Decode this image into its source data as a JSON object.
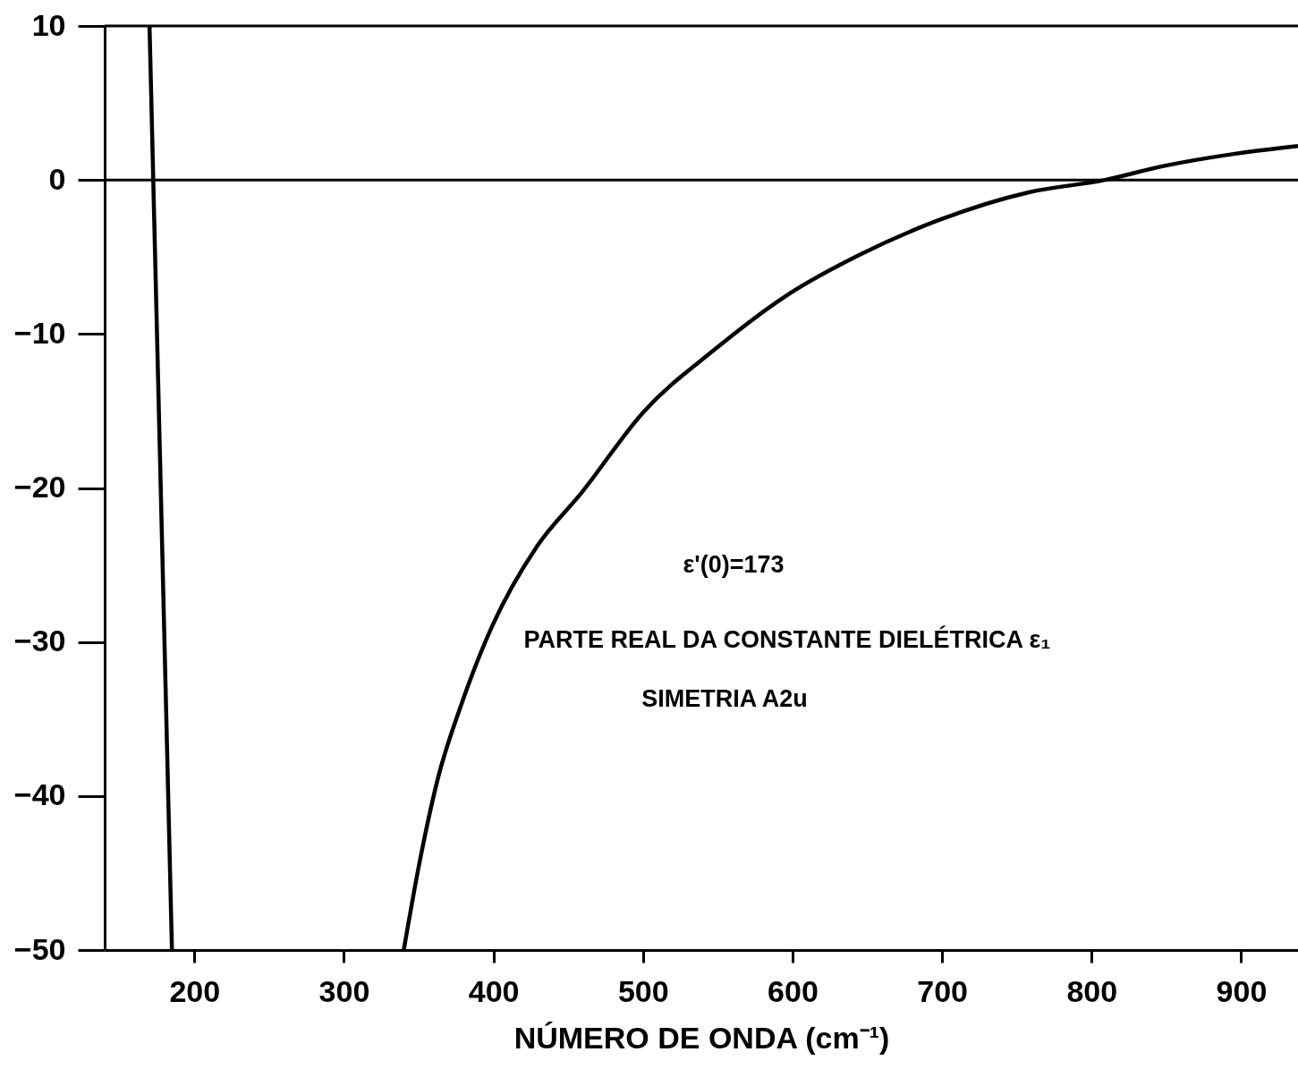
{
  "chart_data": {
    "type": "line",
    "xlabel": "NÚMERO DE ONDA (cm⁻¹)",
    "xlim": [
      140,
      938
    ],
    "xticks": [
      200,
      300,
      400,
      500,
      600,
      700,
      800,
      900
    ],
    "ylim": [
      -50,
      10
    ],
    "yticks": [
      -50,
      -40,
      -30,
      -20,
      -10,
      0,
      10
    ],
    "series": [
      {
        "color": "#000000",
        "x": [
          170,
          185
        ],
        "values": [
          10,
          -50
        ]
      },
      {
        "color": "#000000",
        "x": [
          340,
          351,
          363,
          378,
          399,
          429,
          459,
          500,
          548,
          596,
          644,
          698,
          758,
          809,
          848,
          896,
          938
        ],
        "values": [
          -50,
          -44.1,
          -38.8,
          -34.2,
          -29,
          -23.8,
          -20.3,
          -15.1,
          -11,
          -7.5,
          -4.9,
          -2.6,
          -0.8,
          0,
          0.9,
          1.7,
          2.2
        ]
      }
    ],
    "ref_lines": [
      {
        "axis": "y",
        "value": 0,
        "color": "#000000"
      }
    ],
    "annotations": [
      "ε'(0)=173",
      "PARTE REAL DA CONSTANTE  DIELÉTRICA ε₁",
      "SIMETRIA A2u"
    ],
    "grid": false,
    "line_style": "solid",
    "marker": "none"
  }
}
